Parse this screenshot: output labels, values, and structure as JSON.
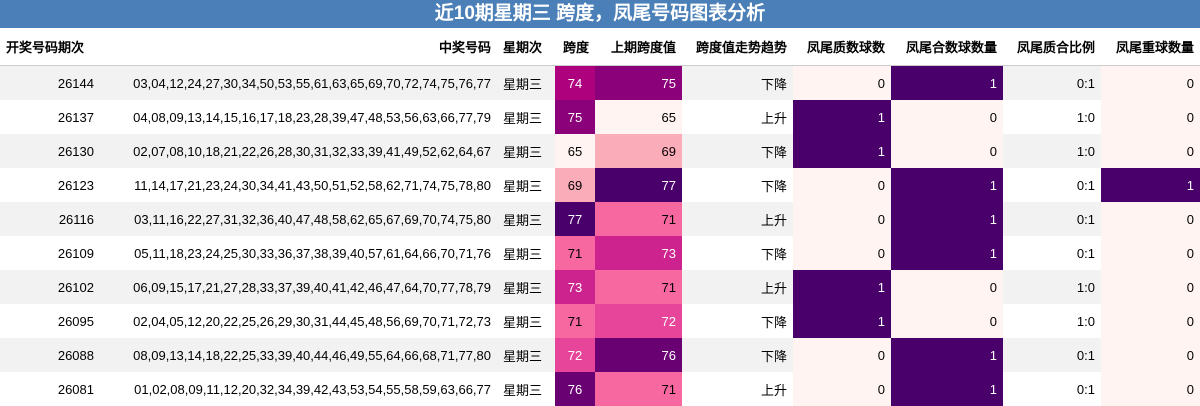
{
  "title": "近10期星期三 跨度，凤尾号码图表分析",
  "table": {
    "header": [
      "开奖号码期次",
      "中奖号码",
      "星期次",
      "跨度",
      "上期跨度值",
      "跨度值走势趋势",
      "凤尾质数球数",
      "凤尾合数球数量",
      "凤尾质合比例",
      "凤尾重球数量"
    ],
    "rows": [
      [
        26144,
        "03,04,12,24,27,30,34,50,53,55,61,63,65,69,70,72,74,75,76,77",
        "星期三",
        74,
        75,
        "下降",
        0,
        1,
        "0:1",
        0
      ],
      [
        26137,
        "04,08,09,13,14,15,16,17,18,23,28,39,47,48,53,56,63,66,77,79",
        "星期三",
        75,
        65,
        "上升",
        1,
        0,
        "1:0",
        0
      ],
      [
        26130,
        "02,07,08,10,18,21,22,26,28,30,31,32,33,39,41,49,52,62,64,67",
        "星期三",
        65,
        69,
        "下降",
        1,
        0,
        "1:0",
        0
      ],
      [
        26123,
        "11,14,17,21,23,24,30,34,41,43,50,51,52,58,62,71,74,75,78,80",
        "星期三",
        69,
        77,
        "下降",
        0,
        1,
        "0:1",
        1
      ],
      [
        26116,
        "03,11,16,22,27,31,32,36,40,47,48,58,62,65,67,69,70,74,75,80",
        "星期三",
        77,
        71,
        "上升",
        0,
        1,
        "0:1",
        0
      ],
      [
        26109,
        "05,11,18,23,24,25,30,33,36,37,38,39,40,57,61,64,66,70,71,76",
        "星期三",
        71,
        73,
        "下降",
        0,
        1,
        "0:1",
        0
      ],
      [
        26102,
        "06,09,15,17,21,27,28,33,37,39,40,41,42,46,47,64,70,77,78,79",
        "星期三",
        73,
        71,
        "上升",
        1,
        0,
        "1:0",
        0
      ],
      [
        26095,
        "02,04,05,12,20,22,25,26,29,30,31,44,45,48,56,69,70,71,72,73",
        "星期三",
        71,
        72,
        "下降",
        1,
        0,
        "1:0",
        0
      ],
      [
        26088,
        "08,09,13,14,18,22,25,33,39,40,44,46,49,55,64,66,68,71,77,80",
        "星期三",
        72,
        76,
        "下降",
        0,
        1,
        "0:1",
        0
      ],
      [
        26081,
        "01,02,08,09,11,12,20,32,34,39,42,43,53,54,55,58,59,63,66,77",
        "星期三",
        76,
        71,
        "上升",
        0,
        1,
        "0:1",
        0
      ]
    ]
  }
}
